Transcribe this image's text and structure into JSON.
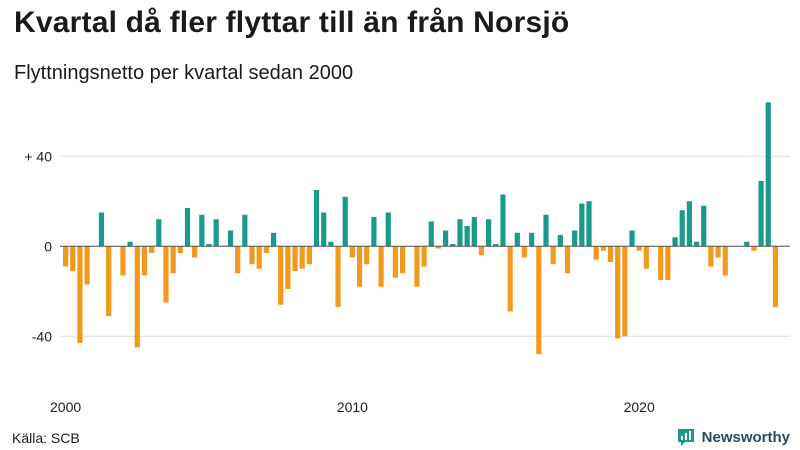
{
  "title": "Kvartal då fler flyttar till än från Norsjö",
  "subtitle": "Flyttningsnetto per kvartal sedan 2000",
  "source": "Källa: SCB",
  "brand": {
    "name": "Newsworthy",
    "icon": "newsworthy-logo-icon"
  },
  "colors": {
    "positive": "#1a9a8a",
    "negative": "#f29a1e",
    "grid": "#dddddd"
  },
  "chart_data": {
    "type": "bar",
    "title": "Kvartal då fler flyttar till än från Norsjö",
    "subtitle": "Flyttningsnetto per kvartal sedan 2000",
    "ylim": [
      -55,
      65
    ],
    "y_ticks": [
      40,
      0,
      -40
    ],
    "y_tick_labels": [
      "+ 40",
      "0",
      "-40"
    ],
    "x_ticks": [
      "2000",
      "2010",
      "2020"
    ],
    "x_tick_years": [
      2000,
      2010,
      2020
    ],
    "start_year": 2000,
    "grid": true,
    "values": [
      -9,
      -11,
      -43,
      -17,
      0,
      15,
      -31,
      0,
      -13,
      2,
      -45,
      -13,
      -3,
      12,
      -25,
      -12,
      -3,
      17,
      -5,
      14,
      1,
      12,
      0,
      7,
      -12,
      14,
      -8,
      -10,
      -3,
      6,
      -26,
      -19,
      -11,
      -10,
      -8,
      25,
      15,
      2,
      -27,
      22,
      -5,
      -18,
      -8,
      13,
      -18,
      15,
      -14,
      -12,
      0,
      -18,
      -9,
      11,
      -1,
      7,
      1,
      12,
      9,
      13,
      -4,
      12,
      1,
      23,
      -29,
      6,
      -5,
      6,
      -48,
      14,
      -8,
      5,
      -12,
      7,
      19,
      20,
      -6,
      -2,
      -7,
      -41,
      -40,
      7,
      -2,
      -10,
      0,
      -15,
      -15,
      4,
      16,
      20,
      2,
      18,
      -9,
      -5,
      -13,
      0,
      0,
      2,
      -2,
      29,
      64,
      -27
    ]
  }
}
